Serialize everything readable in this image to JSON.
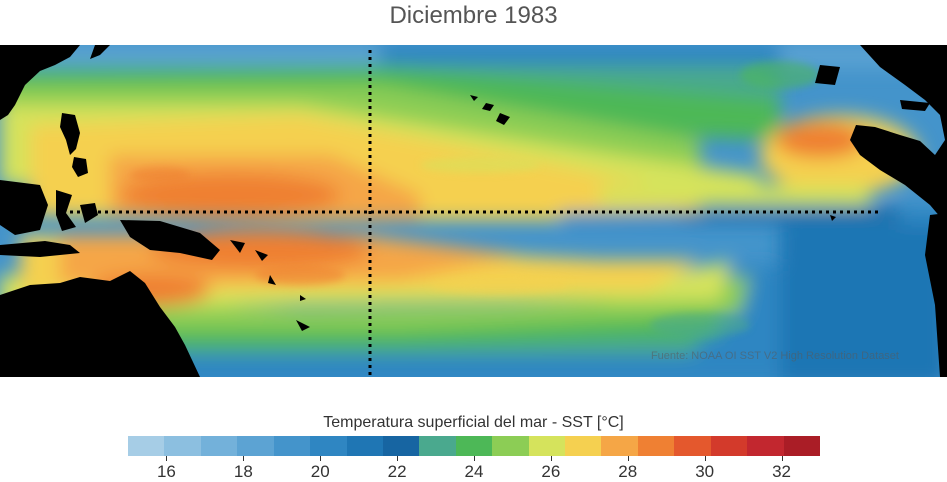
{
  "title": "Diciembre 1983",
  "credit": "Fuente: NOAA OI SST V2 High Resolution Dataset",
  "colorbar": {
    "title": "Temperatura superficial del mar - SST  [°C]",
    "min": 15,
    "max": 33,
    "colors": [
      "#a6cde6",
      "#8cbfe0",
      "#73b1da",
      "#5ca3d3",
      "#4494cb",
      "#2f86c2",
      "#1f76b4",
      "#1765a2",
      "#4aa98e",
      "#4db857",
      "#8ccd55",
      "#d5e35c",
      "#f5d050",
      "#f5a646",
      "#ef8033",
      "#e4582d",
      "#d33a2b",
      "#c2272f",
      "#aa1d26"
    ],
    "tick_values": [
      16,
      18,
      20,
      22,
      24,
      26,
      28,
      30,
      32
    ],
    "tick_labels": [
      "16",
      "18",
      "20",
      "22",
      "24",
      "26",
      "28",
      "30",
      "32"
    ]
  },
  "map": {
    "variable": "Sea surface temperature",
    "units": "°C",
    "reference_lines": [
      "equator",
      "date line (180°)"
    ]
  }
}
